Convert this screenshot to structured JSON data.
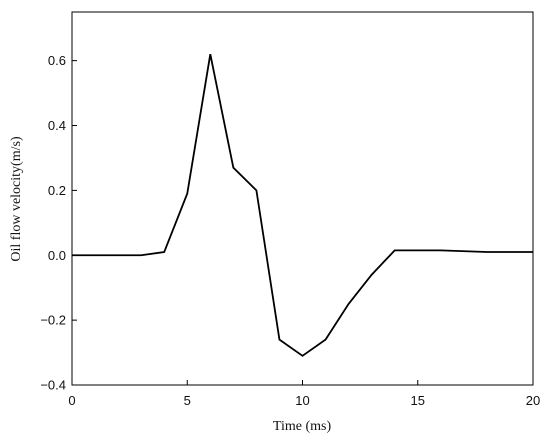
{
  "chart_data": {
    "type": "line",
    "title": "",
    "xlabel": "Time (ms)",
    "ylabel": "Oil flow velocity(m/s)",
    "xlim": [
      0,
      20
    ],
    "ylim": [
      -0.4,
      0.75
    ],
    "xticks": [
      0,
      5,
      10,
      15,
      20
    ],
    "xtick_labels": [
      "0",
      "5",
      "10",
      "15",
      "20"
    ],
    "yticks": [
      -0.4,
      -0.2,
      0.0,
      0.2,
      0.4,
      0.6
    ],
    "ytick_labels": [
      "−0.4",
      "−0.2",
      "0.0",
      "0.2",
      "0.4",
      "0.6"
    ],
    "grid": false,
    "legend": "none",
    "line_color": "#000000",
    "series": [
      {
        "x": [
          0,
          3,
          4,
          5,
          6,
          7,
          8,
          9,
          10,
          11,
          12,
          13,
          14,
          16,
          18,
          20
        ],
        "y": [
          0.0,
          0.0,
          0.01,
          0.19,
          0.62,
          0.27,
          0.2,
          -0.26,
          -0.31,
          -0.26,
          -0.15,
          -0.06,
          0.015,
          0.015,
          0.01,
          0.01
        ]
      }
    ]
  }
}
